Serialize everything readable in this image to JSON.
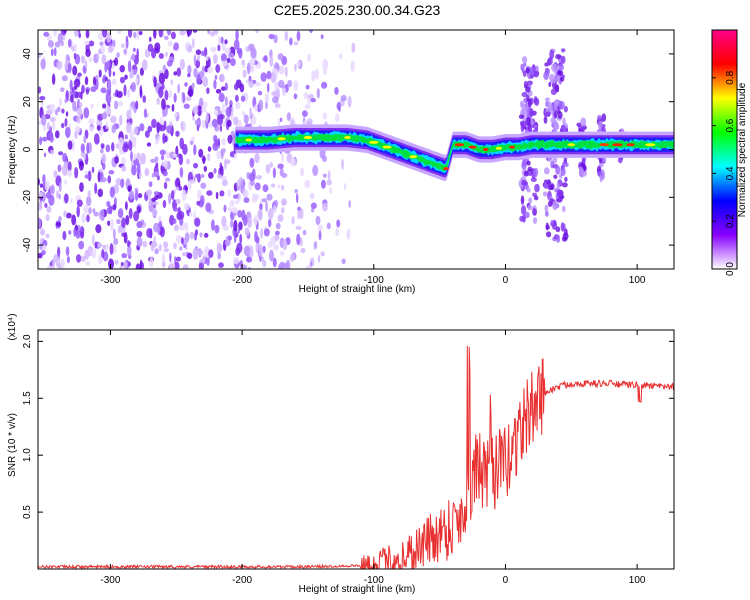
{
  "title": "C2E5.2025.230.00.34.G23",
  "chart_data": [
    {
      "type": "heatmap",
      "xlabel": "Height of straight line (km)",
      "ylabel": "Frequency (Hz)",
      "xlim": [
        -355,
        128
      ],
      "ylim": [
        -50,
        50
      ],
      "xticks": [
        -300,
        -200,
        -100,
        0,
        100
      ],
      "yticks": [
        -40,
        -20,
        0,
        20,
        40
      ],
      "colorbar": {
        "label": "Normalized spectral amplitude",
        "range": [
          0,
          1
        ],
        "ticks": [
          0.0,
          0.2,
          0.4,
          0.6,
          0.8
        ],
        "tick_labels": [
          "0.0",
          "0.2",
          "0.4",
          "0.6",
          "0.8"
        ],
        "colors": [
          "#ffffff",
          "#8800ff",
          "#0000ff",
          "#00ffff",
          "#00ff00",
          "#ffff00",
          "#ff0000",
          "#ff0088"
        ]
      },
      "ridge": {
        "x": [
          -205,
          -180,
          -160,
          -140,
          -120,
          -105,
          -95,
          -85,
          -75,
          -65,
          -55,
          -45,
          -40,
          -30,
          -20,
          -10,
          0,
          10,
          20,
          25,
          30,
          40,
          60,
          80,
          100,
          128
        ],
        "y": [
          4,
          4,
          5,
          5,
          5,
          4,
          2,
          0,
          -2,
          -4,
          -6,
          -8,
          2,
          2,
          0,
          0,
          1,
          1,
          2,
          2,
          2,
          2,
          2,
          2,
          2,
          2
        ]
      }
    },
    {
      "type": "line",
      "xlabel": "Height of straight line (km)",
      "ylabel": "SNR (10 * v/v)",
      "y_multiplier": "(x10⁴)",
      "xlim": [
        -355,
        128
      ],
      "ylim": [
        0,
        2.1
      ],
      "xticks": [
        -300,
        -200,
        -100,
        0,
        100
      ],
      "yticks": [
        0.5,
        1.0,
        1.5,
        2.0
      ],
      "ytick_labels": [
        "0.5",
        "1.0",
        "1.5",
        "2.0"
      ],
      "color": "#e83030",
      "series": [
        {
          "x": [
            -355,
            -300,
            -250,
            -200,
            -150,
            -110,
            -95,
            -85,
            -75,
            -65,
            -55,
            -45,
            -40,
            -35,
            -30,
            -28,
            -25,
            -20,
            -15,
            -10,
            -5,
            0,
            5,
            10,
            15,
            20,
            25,
            30,
            40,
            50,
            60,
            70,
            80,
            90,
            100,
            110,
            120,
            128
          ],
          "y": [
            0.02,
            0.02,
            0.02,
            0.02,
            0.02,
            0.03,
            0.05,
            0.08,
            0.12,
            0.2,
            0.28,
            0.35,
            0.4,
            0.45,
            0.55,
            0.7,
            0.8,
            0.9,
            0.75,
            0.85,
            0.9,
            0.9,
            1.05,
            1.2,
            1.3,
            1.4,
            1.5,
            1.55,
            1.6,
            1.63,
            1.63,
            1.63,
            1.63,
            1.62,
            1.62,
            1.61,
            1.6,
            1.6
          ]
        }
      ]
    }
  ]
}
